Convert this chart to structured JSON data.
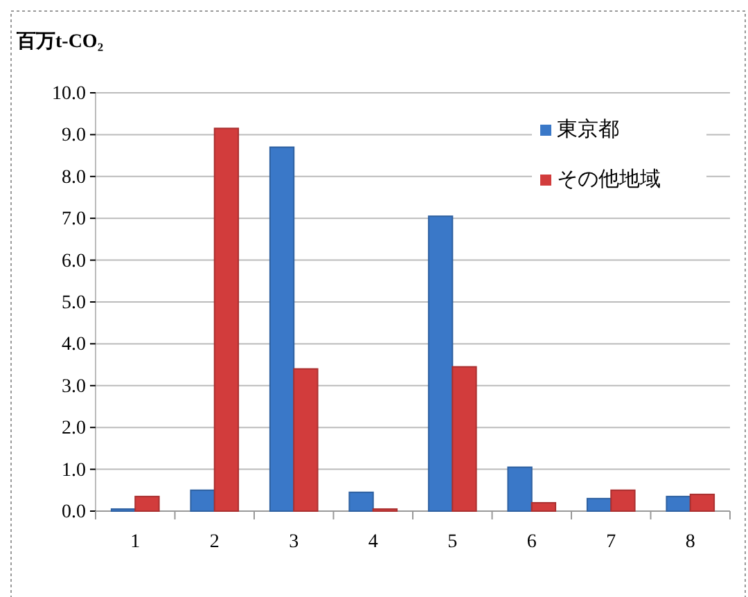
{
  "chart_data": {
    "type": "bar",
    "ylabel": "百万t-CO₂",
    "categories": [
      "1",
      "2",
      "3",
      "4",
      "5",
      "6",
      "7",
      "8"
    ],
    "series": [
      {
        "name": "東京都",
        "color": "#3a78c8",
        "values": [
          0.05,
          0.5,
          8.7,
          0.45,
          7.05,
          1.05,
          0.3,
          0.35
        ]
      },
      {
        "name": "その他地域",
        "color": "#d23c3c",
        "values": [
          0.35,
          9.15,
          3.4,
          0.05,
          3.45,
          0.2,
          0.5,
          0.4
        ]
      }
    ],
    "ylim": [
      0,
      10
    ],
    "yticks": [
      {
        "value": 0,
        "label": "0.0"
      },
      {
        "value": 1,
        "label": "1.0"
      },
      {
        "value": 2,
        "label": "2.0"
      },
      {
        "value": 3,
        "label": "3.0"
      },
      {
        "value": 4,
        "label": "4.0"
      },
      {
        "value": 5,
        "label": "5.0"
      },
      {
        "value": 6,
        "label": "6.0"
      },
      {
        "value": 7,
        "label": "7.0"
      },
      {
        "value": 8,
        "label": "8.0"
      },
      {
        "value": 9,
        "label": "9.0"
      },
      {
        "value": 10,
        "label": "10.0"
      }
    ],
    "grid": "y",
    "legend": "top right"
  }
}
